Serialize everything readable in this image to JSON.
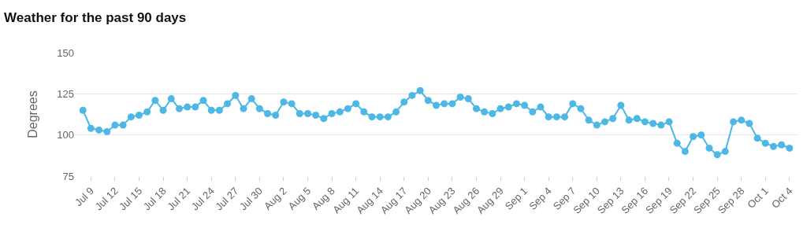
{
  "chart_data": {
    "type": "line",
    "title": "Weather for the past 90 days",
    "ylabel": "Degrees",
    "x": [
      "--07-08",
      "--07-09",
      "--07-10",
      "--07-11",
      "--07-12",
      "--07-13",
      "--07-14",
      "--07-15",
      "--07-16",
      "--07-17",
      "--07-18",
      "--07-19",
      "--07-20",
      "--07-21",
      "--07-22",
      "--07-23",
      "--07-24",
      "--07-25",
      "--07-26",
      "--07-27",
      "--07-28",
      "--07-29",
      "--07-30",
      "--07-31",
      "--08-01",
      "--08-02",
      "--08-03",
      "--08-04",
      "--08-05",
      "--08-06",
      "--08-07",
      "--08-08",
      "--08-09",
      "--08-10",
      "--08-11",
      "--08-12",
      "--08-13",
      "--08-14",
      "--08-15",
      "--08-16",
      "--08-17",
      "--08-18",
      "--08-19",
      "--08-20",
      "--08-21",
      "--08-22",
      "--08-23",
      "--08-24",
      "--08-25",
      "--08-26",
      "--08-27",
      "--08-28",
      "--08-29",
      "--08-30",
      "--08-31",
      "--09-01",
      "--09-02",
      "--09-03",
      "--09-04",
      "--09-05",
      "--09-06",
      "--09-07",
      "--09-08",
      "--09-09",
      "--09-10",
      "--09-11",
      "--09-12",
      "--09-13",
      "--09-14",
      "--09-15",
      "--09-16",
      "--09-17",
      "--09-18",
      "--09-19",
      "--09-20",
      "--09-21",
      "--09-22",
      "--09-23",
      "--09-24",
      "--09-25",
      "--09-26",
      "--09-27",
      "--09-28",
      "--09-29",
      "--09-30",
      "--10-01",
      "--10-02",
      "--10-03",
      "--10-04"
    ],
    "series": [
      {
        "color": "#4db8e6",
        "values": [
          115,
          104,
          103,
          102,
          106,
          106,
          111,
          112,
          114,
          121,
          115,
          122,
          116,
          117,
          117,
          121,
          115,
          115,
          119,
          124,
          116,
          122,
          116,
          113,
          112,
          120,
          119,
          113,
          113,
          112,
          110,
          113,
          114,
          116,
          119,
          114,
          111,
          111,
          111,
          114,
          120,
          124,
          127,
          121,
          118,
          119,
          119,
          123,
          122,
          116,
          114,
          113,
          116,
          117,
          119,
          118,
          114,
          117,
          111,
          111,
          111,
          119,
          116,
          109,
          106,
          108,
          110,
          118,
          109,
          110,
          108,
          107,
          106,
          108,
          95,
          90,
          99,
          100,
          92,
          88,
          90,
          108,
          109,
          107,
          98,
          95,
          93,
          94,
          92
        ]
      }
    ],
    "xlim": [
      "--07-07",
      "--10-05"
    ],
    "xticks": [
      {
        "value": "--07-09",
        "label": "Jul 9"
      },
      {
        "value": "--07-12",
        "label": "Jul 12"
      },
      {
        "value": "--07-15",
        "label": "Jul 15"
      },
      {
        "value": "--07-18",
        "label": "Jul 18"
      },
      {
        "value": "--07-21",
        "label": "Jul 21"
      },
      {
        "value": "--07-24",
        "label": "Jul 24"
      },
      {
        "value": "--07-27",
        "label": "Jul 27"
      },
      {
        "value": "--07-30",
        "label": "Jul 30"
      },
      {
        "value": "--08-02",
        "label": "Aug 2"
      },
      {
        "value": "--08-05",
        "label": "Aug 5"
      },
      {
        "value": "--08-08",
        "label": "Aug 8"
      },
      {
        "value": "--08-11",
        "label": "Aug 11"
      },
      {
        "value": "--08-14",
        "label": "Aug 14"
      },
      {
        "value": "--08-17",
        "label": "Aug 17"
      },
      {
        "value": "--08-20",
        "label": "Aug 20"
      },
      {
        "value": "--08-23",
        "label": "Aug 23"
      },
      {
        "value": "--08-26",
        "label": "Aug 26"
      },
      {
        "value": "--08-29",
        "label": "Aug 29"
      },
      {
        "value": "--09-01",
        "label": "Sep 1"
      },
      {
        "value": "--09-04",
        "label": "Sep 4"
      },
      {
        "value": "--09-07",
        "label": "Sep 7"
      },
      {
        "value": "--09-10",
        "label": "Sep 10"
      },
      {
        "value": "--09-13",
        "label": "Sep 13"
      },
      {
        "value": "--09-16",
        "label": "Sep 16"
      },
      {
        "value": "--09-19",
        "label": "Sep 19"
      },
      {
        "value": "--09-22",
        "label": "Sep 22"
      },
      {
        "value": "--09-25",
        "label": "Sep 25"
      },
      {
        "value": "--09-28",
        "label": "Sep 28"
      },
      {
        "value": "--10-01",
        "label": "Oct 1"
      },
      {
        "value": "--10-04",
        "label": "Oct 4"
      }
    ],
    "ylim": [
      75,
      150
    ],
    "yticks": [
      75,
      100,
      125,
      150
    ],
    "grid": "y",
    "marker": "circle",
    "line_style": "solid"
  }
}
